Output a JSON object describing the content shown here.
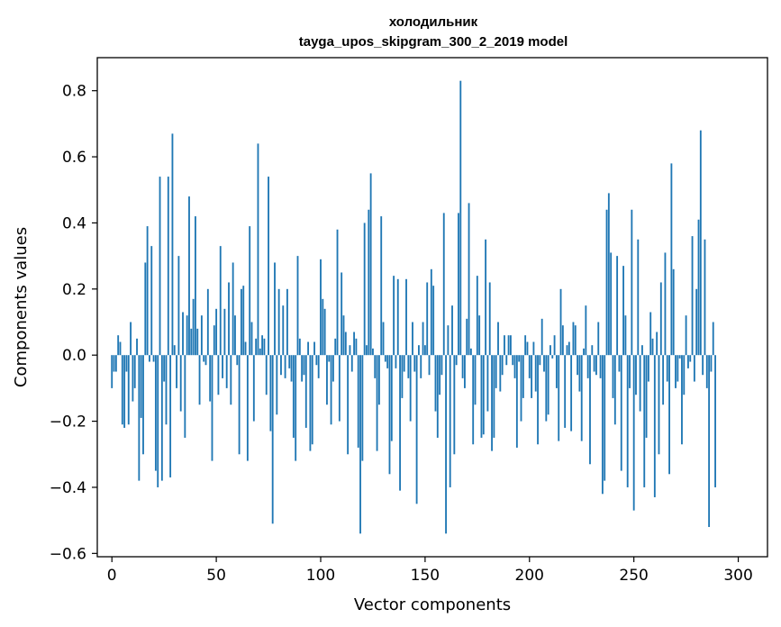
{
  "chart_data": {
    "type": "bar",
    "title": "холодильник",
    "subtitle": "tayga_upos_skipgram_300_2_2019 model",
    "xlabel": "Vector components",
    "ylabel": "Components values",
    "xlim": [
      -7,
      314
    ],
    "ylim": [
      -0.61,
      0.9
    ],
    "xticks": [
      0,
      50,
      100,
      150,
      200,
      250,
      300
    ],
    "yticks": [
      -0.6,
      -0.4,
      -0.2,
      0.0,
      0.2,
      0.4,
      0.6,
      0.8
    ],
    "ytick_labels": [
      "−0.6",
      "−0.4",
      "−0.2",
      "0.0",
      "0.2",
      "0.4",
      "0.6",
      "0.8"
    ],
    "bar_color": "#1f77b4",
    "grid": false,
    "values": [
      -0.1,
      -0.05,
      -0.05,
      0.06,
      0.04,
      -0.21,
      -0.22,
      -0.05,
      -0.21,
      0.1,
      -0.14,
      -0.1,
      0.05,
      -0.38,
      -0.19,
      -0.3,
      0.28,
      0.39,
      -0.02,
      0.33,
      -0.02,
      -0.35,
      -0.4,
      0.54,
      -0.38,
      -0.08,
      -0.21,
      0.54,
      -0.37,
      0.67,
      0.03,
      -0.1,
      0.3,
      -0.17,
      0.13,
      -0.25,
      0.12,
      0.48,
      0.08,
      0.17,
      0.42,
      0.08,
      -0.15,
      0.12,
      -0.02,
      -0.03,
      0.2,
      -0.14,
      -0.32,
      0.09,
      0.14,
      -0.12,
      0.33,
      -0.07,
      0.14,
      -0.1,
      0.22,
      -0.15,
      0.28,
      0.12,
      -0.03,
      -0.3,
      0.2,
      0.21,
      0.04,
      -0.32,
      0.39,
      0.1,
      -0.2,
      0.05,
      0.64,
      0.02,
      0.06,
      0.05,
      -0.12,
      0.54,
      -0.23,
      -0.51,
      0.28,
      -0.18,
      0.2,
      -0.06,
      0.15,
      -0.07,
      0.2,
      -0.04,
      -0.08,
      -0.25,
      -0.32,
      0.3,
      0.05,
      -0.08,
      -0.06,
      -0.22,
      0.04,
      -0.29,
      -0.27,
      0.04,
      -0.03,
      -0.07,
      0.29,
      0.17,
      0.14,
      -0.15,
      -0.02,
      -0.21,
      -0.08,
      0.05,
      0.38,
      -0.2,
      0.25,
      0.12,
      0.07,
      -0.3,
      0.03,
      -0.05,
      0.07,
      0.05,
      -0.28,
      -0.54,
      -0.32,
      0.4,
      0.03,
      0.44,
      0.55,
      0.02,
      -0.07,
      -0.29,
      -0.15,
      0.42,
      0.1,
      -0.02,
      -0.04,
      -0.36,
      -0.26,
      0.24,
      -0.04,
      0.23,
      -0.41,
      -0.13,
      -0.05,
      0.23,
      -0.07,
      -0.2,
      0.1,
      -0.05,
      -0.45,
      0.03,
      -0.07,
      0.1,
      0.03,
      0.22,
      -0.06,
      0.26,
      0.21,
      -0.17,
      -0.25,
      -0.12,
      -0.06,
      0.43,
      -0.54,
      0.09,
      -0.4,
      0.15,
      -0.3,
      -0.03,
      0.43,
      0.83,
      -0.07,
      -0.1,
      0.11,
      0.46,
      0.02,
      -0.27,
      -0.15,
      0.24,
      0.12,
      -0.25,
      -0.24,
      0.35,
      -0.17,
      0.22,
      -0.29,
      -0.25,
      -0.1,
      0.1,
      -0.11,
      -0.06,
      0.06,
      -0.03,
      0.06,
      0.06,
      -0.03,
      -0.07,
      -0.28,
      -0.02,
      -0.2,
      -0.13,
      0.06,
      0.04,
      -0.07,
      -0.13,
      0.04,
      -0.11,
      -0.27,
      -0.03,
      0.11,
      -0.05,
      -0.2,
      -0.18,
      0.03,
      -0.01,
      0.06,
      -0.1,
      -0.26,
      0.2,
      0.09,
      -0.22,
      0.03,
      0.04,
      -0.23,
      0.1,
      0.09,
      -0.06,
      -0.11,
      -0.26,
      0.02,
      0.15,
      -0.07,
      -0.33,
      0.03,
      -0.05,
      -0.06,
      0.1,
      -0.07,
      -0.42,
      -0.38,
      0.44,
      0.49,
      0.31,
      -0.13,
      -0.21,
      0.3,
      -0.05,
      -0.35,
      0.27,
      0.12,
      -0.4,
      -0.1,
      0.44,
      -0.47,
      -0.12,
      0.35,
      -0.17,
      0.03,
      -0.4,
      -0.25,
      -0.08,
      0.13,
      0.05,
      -0.43,
      0.07,
      -0.3,
      0.22,
      -0.15,
      0.31,
      -0.08,
      -0.36,
      0.58,
      0.26,
      -0.1,
      -0.08,
      -0.01,
      -0.27,
      -0.12,
      0.12,
      -0.04,
      -0.02,
      0.36,
      -0.08,
      0.2,
      0.41,
      0.68,
      -0.06,
      0.35,
      -0.1,
      -0.52,
      -0.05,
      0.1,
      -0.4
    ]
  }
}
